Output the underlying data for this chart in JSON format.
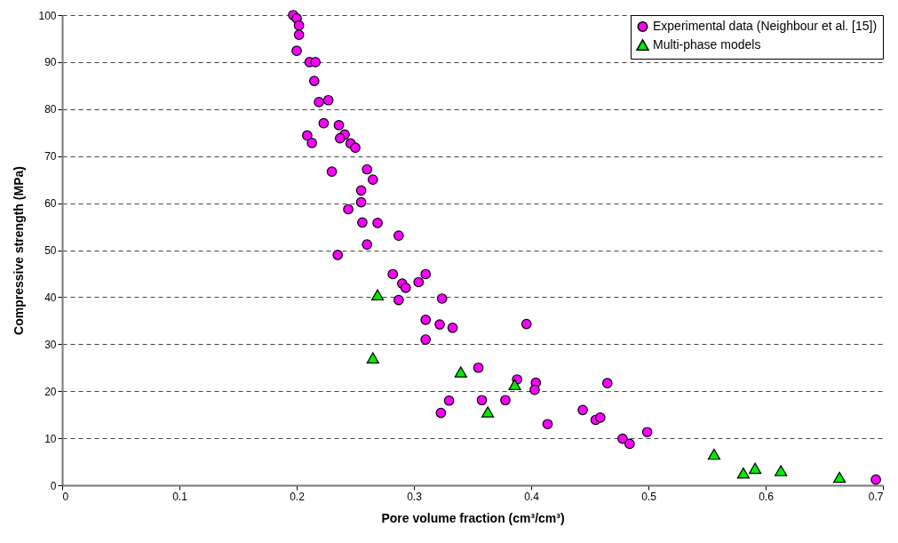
{
  "chart_data": {
    "type": "scatter",
    "xlabel": "Pore volume fraction (cm³/cm³)",
    "ylabel": "Compressive strength (MPa)",
    "xlim": [
      0,
      0.7
    ],
    "xticks": [
      0,
      0.1,
      0.2,
      0.3,
      0.4,
      0.5,
      0.6,
      0.7
    ],
    "ylim": [
      0,
      100
    ],
    "yticks": [
      0,
      10,
      20,
      30,
      40,
      50,
      60,
      70,
      80,
      90,
      100
    ],
    "grid": "y",
    "legend": "top right",
    "series": [
      {
        "name": "Experimental data (Neighbour et al. [15])",
        "color": "#ff00ff",
        "marker": "circle",
        "x": [
          0.197,
          0.2,
          0.202,
          0.202,
          0.2,
          0.211,
          0.216,
          0.215,
          0.219,
          0.227,
          0.223,
          0.236,
          0.241,
          0.237,
          0.209,
          0.213,
          0.246,
          0.25,
          0.23,
          0.26,
          0.265,
          0.255,
          0.255,
          0.244,
          0.256,
          0.269,
          0.26,
          0.235,
          0.287,
          0.282,
          0.31,
          0.29,
          0.293,
          0.304,
          0.287,
          0.324,
          0.31,
          0.322,
          0.333,
          0.396,
          0.31,
          0.355,
          0.388,
          0.404,
          0.403,
          0.33,
          0.358,
          0.378,
          0.323,
          0.414,
          0.465,
          0.444,
          0.455,
          0.459,
          0.478,
          0.484,
          0.499,
          0.694
        ],
        "values": [
          100,
          99.3,
          97.8,
          95.8,
          92.4,
          90,
          90,
          86,
          81.5,
          81.9,
          77,
          76.6,
          74.6,
          73.8,
          74.4,
          72.8,
          72.7,
          71.8,
          66.7,
          67.2,
          65,
          62.7,
          60.2,
          58.7,
          55.9,
          55.8,
          51.2,
          49,
          53.1,
          44.9,
          44.9,
          42.9,
          42,
          43.2,
          39.4,
          39.7,
          35.2,
          34.2,
          33.5,
          34.3,
          31,
          25,
          22.5,
          21.8,
          20.3,
          18,
          18.1,
          18.1,
          15.4,
          13,
          21.7,
          16,
          13.9,
          14.4,
          9.9,
          8.8,
          11.3,
          1.2
        ]
      },
      {
        "name": "Multi-phase models",
        "color": "#00ee00",
        "marker": "triangle",
        "x": [
          0.269,
          0.265,
          0.34,
          0.386,
          0.363,
          0.556,
          0.581,
          0.591,
          0.613,
          0.663
        ],
        "values": [
          40.5,
          27.1,
          24.1,
          21.4,
          15.6,
          6.6,
          2.6,
          3.6,
          3.1,
          1.7
        ]
      }
    ]
  }
}
